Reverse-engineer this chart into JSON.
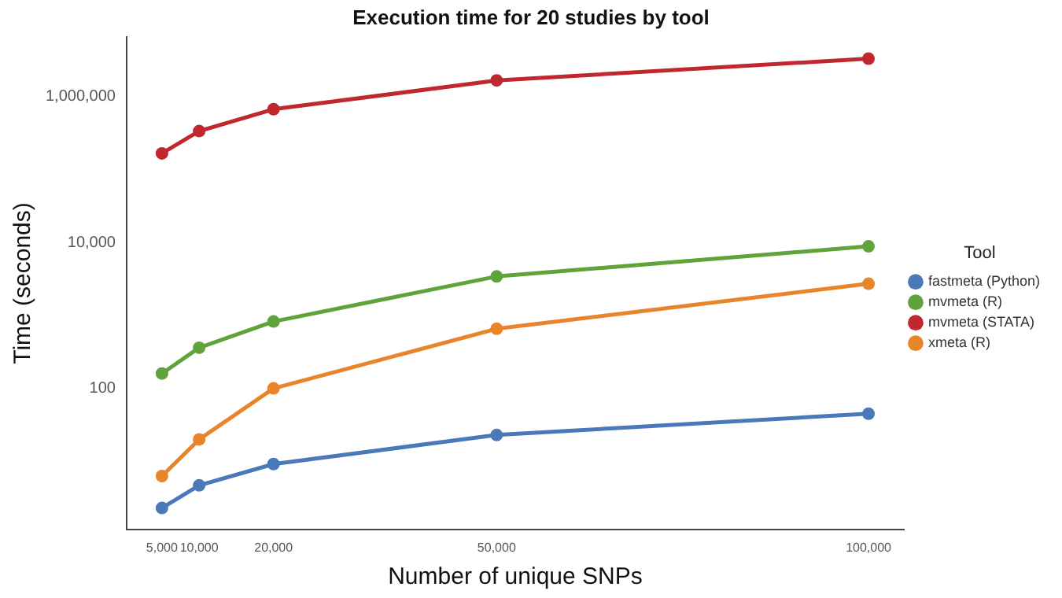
{
  "chart_data": {
    "type": "line",
    "title": "Execution time for 20 studies by tool",
    "xlabel": "Number of unique SNPs",
    "ylabel": "Time (seconds)",
    "legend_title": "Tool",
    "x": [
      5000,
      10000,
      20000,
      50000,
      100000
    ],
    "series": [
      {
        "name": "fastmeta (Python)",
        "color": "#4a78b8",
        "values": [
          2.3,
          4.7,
          9.2,
          23,
          45
        ]
      },
      {
        "name": "mvmeta (R)",
        "color": "#5fa33a",
        "values": [
          160,
          361,
          825,
          3420,
          8840
        ]
      },
      {
        "name": "mvmeta (STATA)",
        "color": "#c1282d",
        "values": [
          166000,
          336000,
          668000,
          1660000,
          3300000
        ]
      },
      {
        "name": "xmeta (R)",
        "color": "#e8842a",
        "values": [
          6.3,
          20,
          100,
          656,
          2720
        ]
      }
    ],
    "log": "y",
    "xlim": [
      250,
      104750
    ],
    "ylim": [
      1.17,
      6500000
    ],
    "xticks": [
      {
        "value": 5000,
        "label": "5,000"
      },
      {
        "value": 10000,
        "label": "10,000"
      },
      {
        "value": 20000,
        "label": "20,000"
      },
      {
        "value": 50000,
        "label": "50,000"
      },
      {
        "value": 100000,
        "label": "100,000"
      }
    ],
    "yticks": [
      {
        "value": 100,
        "label": "100"
      },
      {
        "value": 10000,
        "label": "10,000"
      },
      {
        "value": 1000000,
        "label": "1,000,000"
      }
    ],
    "grid": false,
    "legend": "right",
    "marker": "circle",
    "line_style": "solid"
  }
}
